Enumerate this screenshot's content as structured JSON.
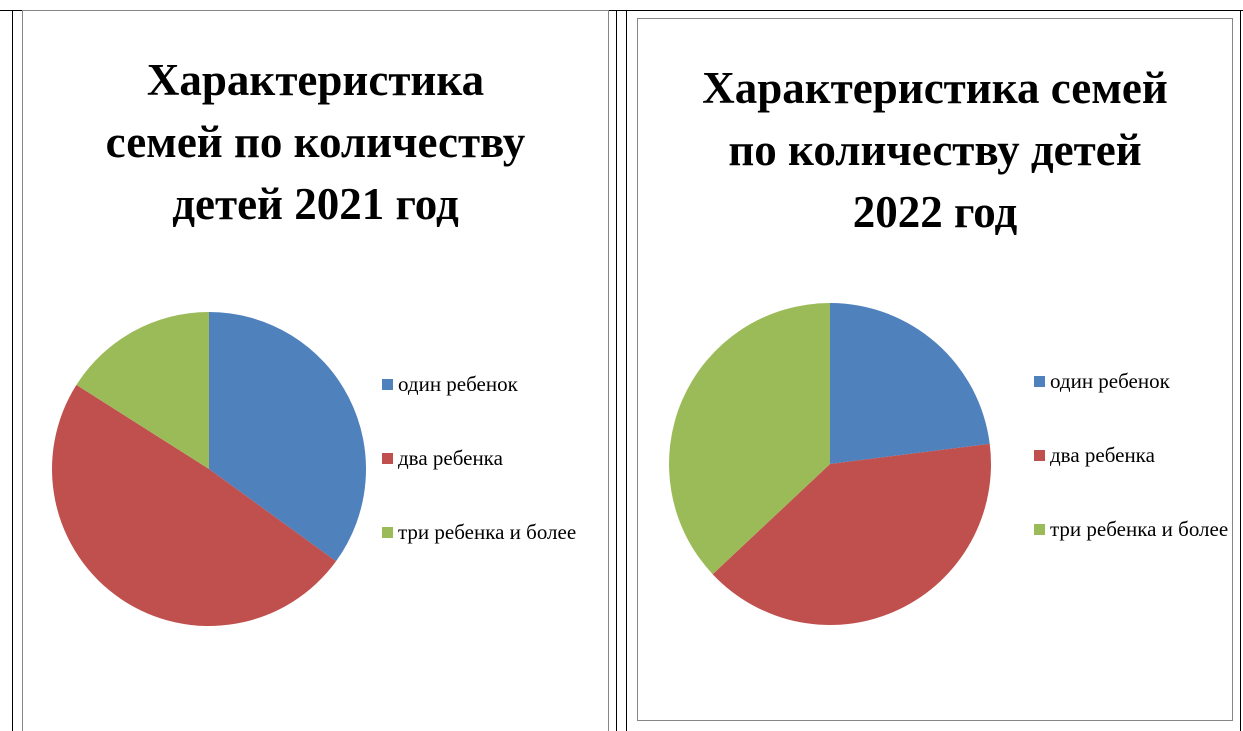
{
  "chart_data": [
    {
      "type": "pie",
      "title": "Характеристика семей по количеству детей 2021 год",
      "categories": [
        "один ребенок",
        "два ребенка",
        "три ребенка и более"
      ],
      "values": [
        35,
        49,
        16
      ],
      "colors": [
        "#4f81bd",
        "#c0504d",
        "#9bbb59"
      ],
      "legend": "right"
    },
    {
      "type": "pie",
      "title": "Характеристика семей по количеству детей 2022 год",
      "categories": [
        "один ребенок",
        "два ребенка",
        "три ребенка и более"
      ],
      "values": [
        23,
        40,
        37
      ],
      "colors": [
        "#4f81bd",
        "#c0504d",
        "#9bbb59"
      ],
      "legend": "right"
    }
  ]
}
